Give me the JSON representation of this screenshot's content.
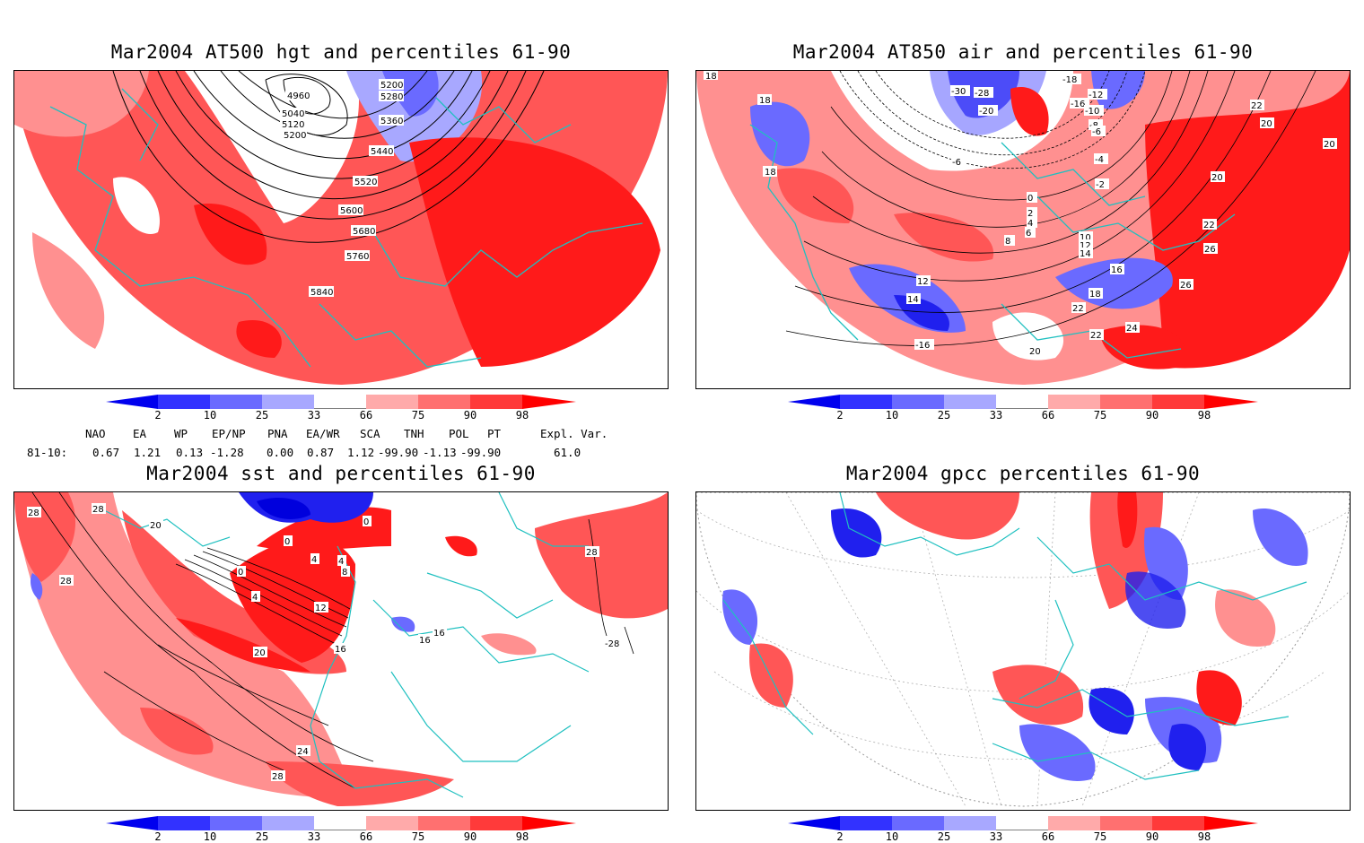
{
  "panels": [
    {
      "id": "hgt500",
      "title": "Mar2004 AT500 hgt and percentiles 61-90",
      "contour_labels": [
        "4960",
        "5040",
        "5120",
        "5200",
        "5200",
        "5280",
        "5360",
        "5440",
        "5520",
        "5600",
        "5680",
        "5760",
        "5840"
      ]
    },
    {
      "id": "air850",
      "title": "Mar2004 AT850 air and percentiles 61-90",
      "contour_labels": [
        "18",
        "18",
        "18",
        "-30",
        "-28",
        "-20",
        "-18",
        "-16",
        "-12",
        "-10",
        "-8",
        "-6",
        "-6",
        "-4",
        "-2",
        "0",
        "2",
        "4",
        "6",
        "8",
        "10",
        "12",
        "14",
        "16",
        "18",
        "20",
        "20",
        "20",
        "22",
        "22",
        "22",
        "22",
        "24",
        "26",
        "26",
        "12",
        "14",
        "-16",
        "20"
      ]
    },
    {
      "id": "sst",
      "title": "Mar2004 sst and percentiles 61-90",
      "contour_labels": [
        "28",
        "28",
        "28",
        "20",
        "0",
        "0",
        "0",
        "4",
        "4",
        "8",
        "12",
        "16",
        "20",
        "24",
        "28",
        "28",
        "-28",
        "4",
        "16",
        "16"
      ]
    },
    {
      "id": "gpcc",
      "title": "Mar2004 gpcc percentiles 61-90",
      "contour_labels": []
    }
  ],
  "colorbar": {
    "ticks": [
      "2",
      "10",
      "25",
      "33",
      "66",
      "75",
      "90",
      "98"
    ],
    "colors": [
      "#0000ee",
      "#3232ff",
      "#6a6aff",
      "#a8a8ff",
      "#ffffff",
      "#ffaaaa",
      "#ff7070",
      "#ff3a3a",
      "#ff0000"
    ]
  },
  "indices": {
    "headers": [
      "NAO",
      "EA",
      "WP",
      "EP/NP",
      "PNA",
      "EA/WR",
      "SCA",
      "TNH",
      "POL",
      "PT",
      "Expl. Var."
    ],
    "row_label": "81-10:",
    "values": [
      "0.67",
      "1.21",
      "0.13",
      "-1.28",
      "0.00",
      "0.87",
      "1.12",
      "-99.90",
      "-1.13",
      "-99.90",
      "61.0"
    ]
  },
  "colors": {
    "coast": "#1fc0c0",
    "red_hi": "#ff1a1a",
    "red_mid": "#ff5656",
    "red_lo": "#ffa0a0",
    "blue_hi": "#2020ee",
    "blue_mid": "#6a6aff",
    "blue_lo": "#a8a8ff"
  }
}
